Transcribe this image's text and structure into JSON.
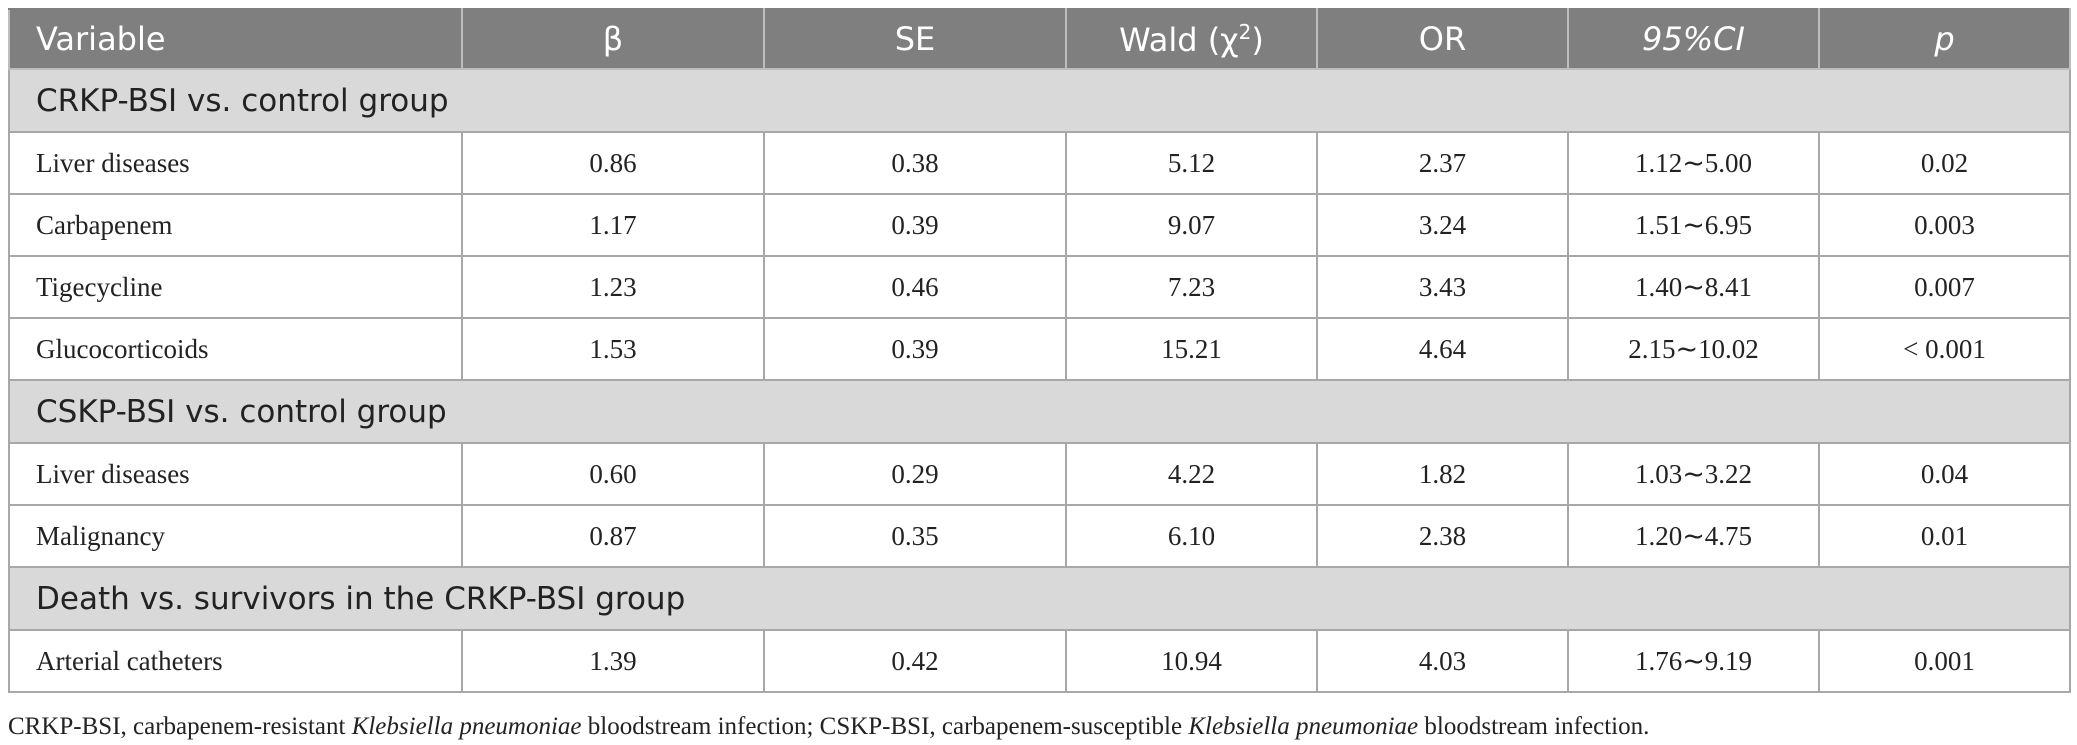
{
  "table": {
    "headers": [
      "Variable",
      "β",
      "SE",
      "Wald (χ",
      "OR",
      "95%CI",
      "p"
    ],
    "wald_superscript": "2",
    "sections": [
      {
        "title": "CRKP-BSI vs. control group",
        "rows": [
          {
            "variable": "Liver diseases",
            "beta": "0.86",
            "se": "0.38",
            "wald": "5.12",
            "or": "2.37",
            "ci": "1.12∼5.00",
            "p": "0.02"
          },
          {
            "variable": "Carbapenem",
            "beta": "1.17",
            "se": "0.39",
            "wald": "9.07",
            "or": "3.24",
            "ci": "1.51∼6.95",
            "p": "0.003"
          },
          {
            "variable": "Tigecycline",
            "beta": "1.23",
            "se": "0.46",
            "wald": "7.23",
            "or": "3.43",
            "ci": "1.40∼8.41",
            "p": "0.007"
          },
          {
            "variable": "Glucocorticoids",
            "beta": "1.53",
            "se": "0.39",
            "wald": "15.21",
            "or": "4.64",
            "ci": "2.15∼10.02",
            "p": "< 0.001"
          }
        ]
      },
      {
        "title": "CSKP-BSI vs. control group",
        "rows": [
          {
            "variable": "Liver diseases",
            "beta": "0.60",
            "se": "0.29",
            "wald": "4.22",
            "or": "1.82",
            "ci": "1.03∼3.22",
            "p": "0.04"
          },
          {
            "variable": "Malignancy",
            "beta": "0.87",
            "se": "0.35",
            "wald": "6.10",
            "or": "2.38",
            "ci": "1.20∼4.75",
            "p": "0.01"
          }
        ]
      },
      {
        "title": "Death vs. survivors in the CRKP-BSI group",
        "rows": [
          {
            "variable": "Arterial catheters",
            "beta": "1.39",
            "se": "0.42",
            "wald": "10.94",
            "or": "4.03",
            "ci": "1.76∼9.19",
            "p": "0.001"
          }
        ]
      }
    ]
  },
  "footnote": {
    "part1": "CRKP-BSI, carbapenem-resistant ",
    "italic1": "Klebsiella pneumoniae",
    "part2": " bloodstream infection; CSKP-BSI, carbapenem-susceptible ",
    "italic2": "Klebsiella pneumoniae",
    "part3": " bloodstream infection."
  }
}
